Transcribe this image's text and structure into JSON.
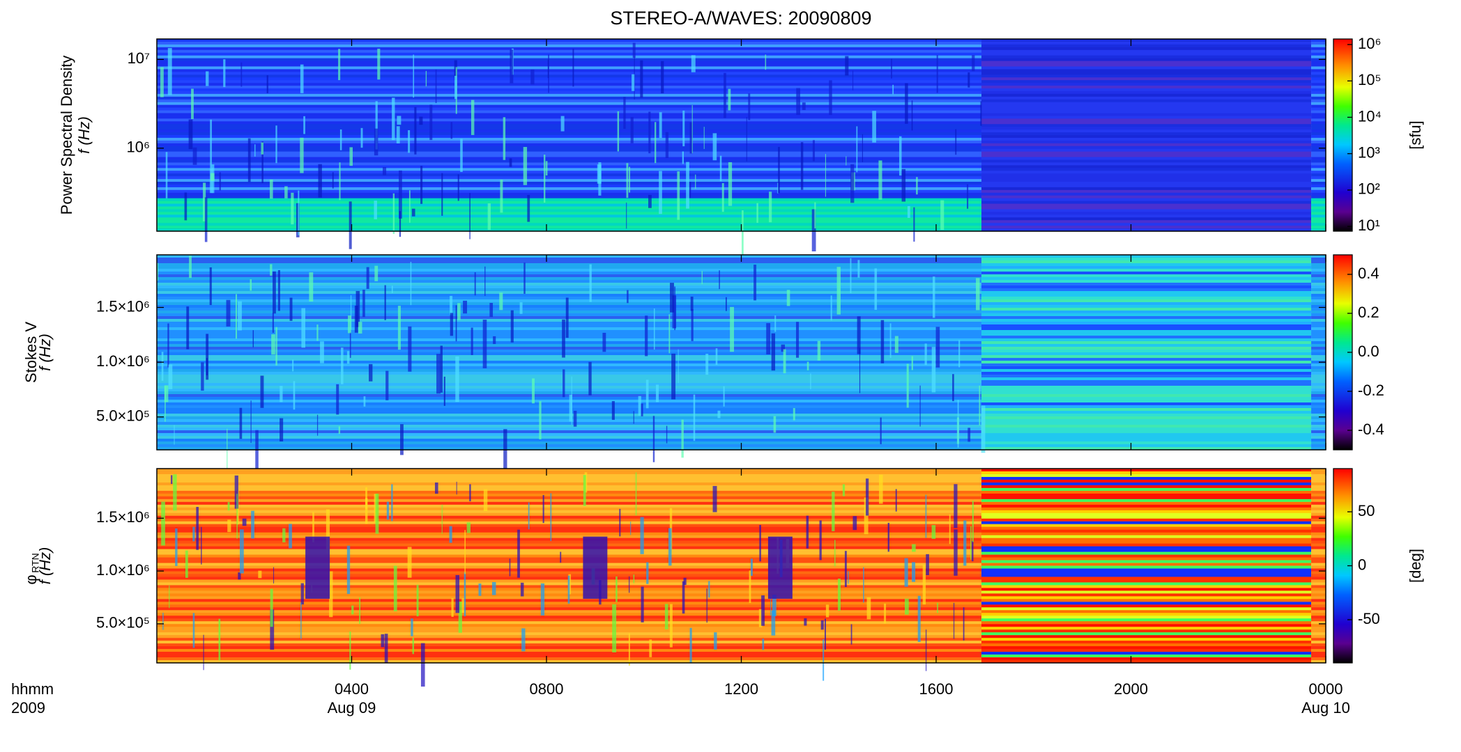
{
  "title": "STEREO-A/WAVES: 20090809",
  "x_axis": {
    "xlim": [
      0,
      24
    ],
    "xticks": [
      {
        "value": 4,
        "label": "0400"
      },
      {
        "value": 8,
        "label": "0800"
      },
      {
        "value": 12,
        "label": "1200"
      },
      {
        "value": 16,
        "label": "1600"
      },
      {
        "value": 20,
        "label": "2000"
      },
      {
        "value": 24,
        "label": "0000"
      }
    ],
    "date_labels": [
      {
        "value": 4,
        "label": "Aug 09"
      },
      {
        "value": 24,
        "label": "Aug 10"
      }
    ],
    "unit_label": "hhmm",
    "year_label": "2009"
  },
  "chart_data": [
    {
      "type": "spectrogram",
      "ylabel": "Power Spectral Density",
      "ylabel2": "f (Hz)",
      "ylog": true,
      "ylim": [
        116000,
        17000000
      ],
      "yticks": [
        {
          "value": 1000000,
          "label": "10⁶"
        },
        {
          "value": 10000000,
          "label": "10⁷"
        }
      ],
      "clog": true,
      "clim": [
        7.4,
        1420000
      ],
      "cticks": [
        {
          "value": 10,
          "label": "10¹"
        },
        {
          "value": 100,
          "label": "10²"
        },
        {
          "value": 1000,
          "label": "10³"
        },
        {
          "value": 10000,
          "label": "10⁴"
        },
        {
          "value": 100000,
          "label": "10⁵"
        },
        {
          "value": 1000000,
          "label": "10⁶"
        }
      ],
      "clabel": "[sfu]"
    },
    {
      "type": "spectrogram",
      "ylabel": "Stokes V",
      "ylabel2": "f (Hz)",
      "ylim": [
        200000,
        1980000
      ],
      "yticks": [
        {
          "value": 500000,
          "label": "5.0×10⁵"
        },
        {
          "value": 1000000,
          "label": "1.0×10⁶"
        },
        {
          "value": 1500000,
          "label": "1.5×10⁶"
        }
      ],
      "clim": [
        -0.5,
        0.5
      ],
      "cticks": [
        -0.4,
        -0.2,
        {
          "value": 0,
          "label": "0.0"
        },
        0.2,
        0.4
      ]
    },
    {
      "type": "spectrogram",
      "ylabel": "φ",
      "ylabel_sub": "RTN",
      "ylabel2": "f (Hz)",
      "ylim": [
        130000,
        1970000
      ],
      "yticks": [
        {
          "value": 500000,
          "label": "5.0×10⁵"
        },
        {
          "value": 1000000,
          "label": "1.0×10⁶"
        },
        {
          "value": 1500000,
          "label": "1.5×10⁶"
        }
      ],
      "clim": [
        -90,
        90
      ],
      "cticks": [
        -50,
        0,
        50
      ],
      "clabel": "[deg]"
    }
  ]
}
